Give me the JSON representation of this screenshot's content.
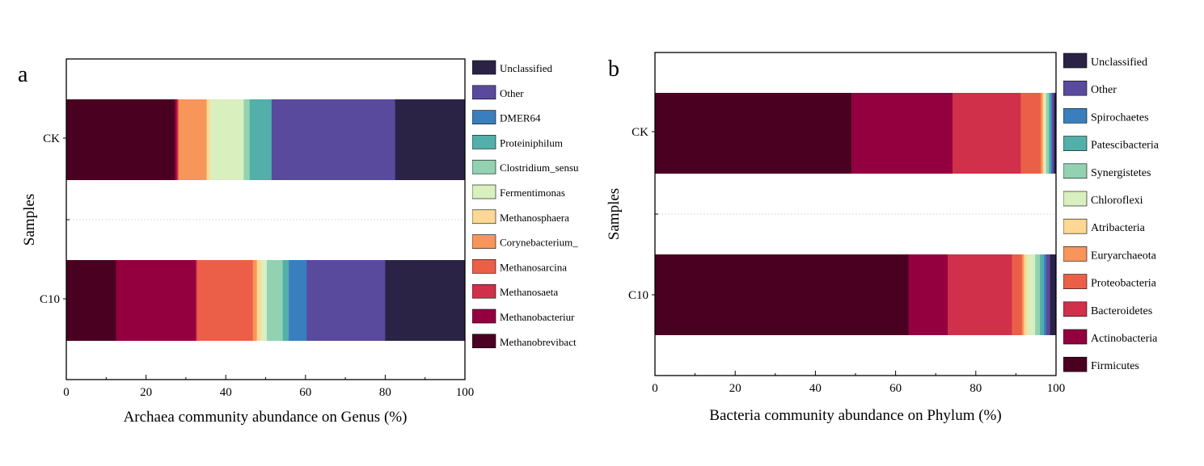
{
  "chart_data": [
    {
      "panel": "a",
      "type": "bar",
      "orientation": "horizontal",
      "stacked": true,
      "xlabel": "Archaea community abundance on Genus (%)",
      "ylabel": "Samples",
      "xlim": [
        0,
        100
      ],
      "xticks": [
        "0",
        "20",
        "40",
        "60",
        "80",
        "100"
      ],
      "categories": [
        "CK",
        "C10"
      ],
      "series": [
        {
          "name": "Methanobrevibact",
          "color": "#4a0020",
          "values": [
            27.2,
            12.5
          ]
        },
        {
          "name": "Methanobacteriur",
          "color": "#94003f",
          "values": [
            0.5,
            20.0
          ]
        },
        {
          "name": "Methanosaeta",
          "color": "#d0304a",
          "values": [
            0.3,
            0.3
          ]
        },
        {
          "name": "Methanosarcina",
          "color": "#eb5f48",
          "values": [
            0.2,
            14.0
          ]
        },
        {
          "name": "Corynebacterium_",
          "color": "#f8955a",
          "values": [
            7.0,
            1.0
          ]
        },
        {
          "name": "Methanosphaera",
          "color": "#fdd892",
          "values": [
            0.8,
            1.0
          ]
        },
        {
          "name": "Fermentimonas",
          "color": "#d9efbe",
          "values": [
            8.5,
            1.5
          ]
        },
        {
          "name": "Clostridium_sensu",
          "color": "#92d2b3",
          "values": [
            1.5,
            4.0
          ]
        },
        {
          "name": "Proteiniphilum",
          "color": "#52afa9",
          "values": [
            5.5,
            1.5
          ]
        },
        {
          "name": "DMER64",
          "color": "#3a7fbd",
          "values": [
            0.0,
            4.5
          ]
        },
        {
          "name": "Other",
          "color": "#5a4a9e",
          "values": [
            31.0,
            19.7
          ]
        },
        {
          "name": "Unclassified",
          "color": "#2a2346",
          "values": [
            17.5,
            20.0
          ]
        }
      ]
    },
    {
      "panel": "b",
      "type": "bar",
      "orientation": "horizontal",
      "stacked": true,
      "xlabel": "Bacteria community abundance on Phylum (%)",
      "ylabel": "Samples",
      "xlim": [
        0,
        100
      ],
      "xticks": [
        "0",
        "20",
        "40",
        "60",
        "80",
        "100"
      ],
      "categories": [
        "CK",
        "C10"
      ],
      "series": [
        {
          "name": "Firmicutes",
          "color": "#4a0020",
          "values": [
            49.0,
            63.2
          ]
        },
        {
          "name": "Actinobacteria",
          "color": "#94003f",
          "values": [
            25.2,
            9.8
          ]
        },
        {
          "name": "Bacteroidetes",
          "color": "#d0304a",
          "values": [
            17.0,
            16.0
          ]
        },
        {
          "name": "Proteobacteria",
          "color": "#eb5f48",
          "values": [
            5.0,
            2.5
          ]
        },
        {
          "name": "Euryarchaeota",
          "color": "#f8955a",
          "values": [
            0.5,
            0.5
          ]
        },
        {
          "name": "Atribacteria",
          "color": "#fdd892",
          "values": [
            0.3,
            0.8
          ]
        },
        {
          "name": "Chloroflexi",
          "color": "#d9efbe",
          "values": [
            0.5,
            2.0
          ]
        },
        {
          "name": "Synergistetes",
          "color": "#92d2b3",
          "values": [
            0.7,
            1.2
          ]
        },
        {
          "name": "Patescibacteria",
          "color": "#52afa9",
          "values": [
            0.5,
            1.0
          ]
        },
        {
          "name": "Spirochaetes",
          "color": "#3a7fbd",
          "values": [
            0.3,
            0.5
          ]
        },
        {
          "name": "Other",
          "color": "#5a4a9e",
          "values": [
            0.5,
            1.0
          ]
        },
        {
          "name": "Unclassified",
          "color": "#2a2346",
          "values": [
            0.5,
            1.5
          ]
        }
      ]
    }
  ]
}
